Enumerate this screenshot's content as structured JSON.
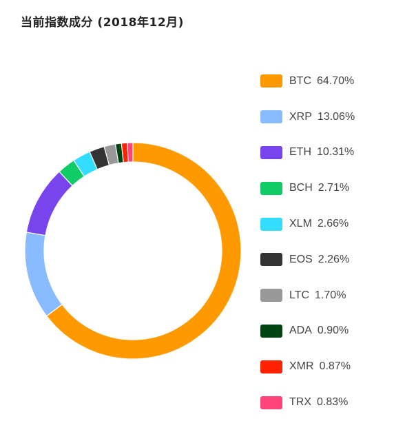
{
  "chart_data": {
    "type": "pie",
    "variant": "donut",
    "title": "当前指数成分 (2018年12月)",
    "legend_position": "right",
    "series": [
      {
        "name": "BTC",
        "value": 64.7,
        "label": "64.70%",
        "color": "#FF9900"
      },
      {
        "name": "XRP",
        "value": 13.06,
        "label": "13.06%",
        "color": "#88BBFF"
      },
      {
        "name": "ETH",
        "value": 10.31,
        "label": "10.31%",
        "color": "#7744EE"
      },
      {
        "name": "BCH",
        "value": 2.71,
        "label": "2.71%",
        "color": "#11CC66"
      },
      {
        "name": "XLM",
        "value": 2.66,
        "label": "2.66%",
        "color": "#33DDFF"
      },
      {
        "name": "EOS",
        "value": 2.26,
        "label": "2.26%",
        "color": "#333333"
      },
      {
        "name": "LTC",
        "value": 1.7,
        "label": "1.70%",
        "color": "#999999"
      },
      {
        "name": "ADA",
        "value": 0.9,
        "label": "0.90%",
        "color": "#004411"
      },
      {
        "name": "XMR",
        "value": 0.87,
        "label": "0.87%",
        "color": "#FF2200"
      },
      {
        "name": "TRX",
        "value": 0.83,
        "label": "0.83%",
        "color": "#FF4477"
      }
    ]
  }
}
